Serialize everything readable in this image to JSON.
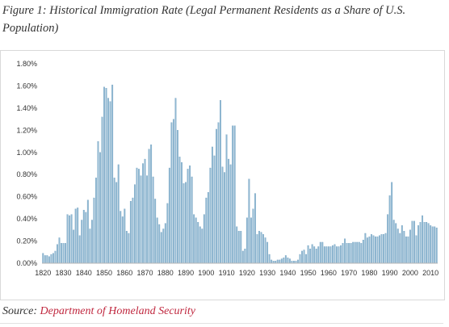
{
  "header": {
    "figure_title": "Figure 1: Historical Immigration Rate (Legal Permanent Residents as a Share of U.S. Population)"
  },
  "source": {
    "prefix": "Source:",
    "link_text": "Department of Homeland Security"
  },
  "colors": {
    "bar": "#8fb8d2",
    "bar_edge": "#6c9cbd",
    "link": "#c0283f"
  },
  "chart_data": {
    "type": "bar",
    "title": "",
    "xlabel": "",
    "ylabel": "",
    "ylim": [
      0,
      0.018
    ],
    "grid": false,
    "y_ticks": [
      "0.00%",
      "0.20%",
      "0.40%",
      "0.60%",
      "0.80%",
      "1.00%",
      "1.20%",
      "1.40%",
      "1.60%",
      "1.80%"
    ],
    "x_ticks": [
      "1820",
      "1830",
      "1840",
      "1850",
      "1860",
      "1870",
      "1880",
      "1890",
      "1900",
      "1910",
      "1920",
      "1930",
      "1940",
      "1950",
      "1960",
      "1970",
      "1980",
      "1990",
      "2000",
      "2010"
    ],
    "x_start": 1820,
    "x_end": 2013,
    "series": [
      {
        "values": [
          0.0009,
          0.0007,
          0.0007,
          0.0006,
          0.0008,
          0.0009,
          0.0011,
          0.0017,
          0.0023,
          0.0018,
          0.0018,
          0.0018,
          0.0044,
          0.0043,
          0.0044,
          0.003,
          0.0049,
          0.005,
          0.0025,
          0.0039,
          0.0048,
          0.0046,
          0.0057,
          0.0031,
          0.0039,
          0.0059,
          0.0077,
          0.011,
          0.01,
          0.0132,
          0.0159,
          0.0158,
          0.0149,
          0.0146,
          0.0161,
          0.0077,
          0.0073,
          0.0089,
          0.0047,
          0.0042,
          0.0049,
          0.0029,
          0.0027,
          0.0056,
          0.0059,
          0.0071,
          0.0086,
          0.0085,
          0.0079,
          0.009,
          0.0094,
          0.0079,
          0.0103,
          0.0107,
          0.0078,
          0.0058,
          0.0041,
          0.0035,
          0.0028,
          0.0031,
          0.0036,
          0.0054,
          0.0086,
          0.0127,
          0.013,
          0.0149,
          0.012,
          0.0096,
          0.0091,
          0.0072,
          0.0073,
          0.0085,
          0.0088,
          0.0078,
          0.0044,
          0.0041,
          0.0037,
          0.0033,
          0.0031,
          0.0044,
          0.0059,
          0.0064,
          0.0086,
          0.0105,
          0.0097,
          0.0121,
          0.0127,
          0.0147,
          0.0087,
          0.0082,
          0.0116,
          0.0094,
          0.0089,
          0.0124,
          0.0124,
          0.0033,
          0.0029,
          0.0029,
          0.0011,
          0.0013,
          0.0041,
          0.0076,
          0.0041,
          0.0049,
          0.0063,
          0.0026,
          0.0029,
          0.0028,
          0.0026,
          0.0023,
          0.0019,
          0.0008,
          0.0003,
          0.0002,
          0.0002,
          0.0003,
          0.0003,
          0.0004,
          0.0005,
          0.0007,
          0.0005,
          0.0004,
          0.0002,
          0.0002,
          0.0002,
          0.0003,
          0.0008,
          0.0011,
          0.0012,
          0.0008,
          0.0016,
          0.0013,
          0.0017,
          0.0015,
          0.0013,
          0.0015,
          0.0019,
          0.0019,
          0.0015,
          0.0015,
          0.0015,
          0.0015,
          0.0016,
          0.0017,
          0.0015,
          0.0015,
          0.0016,
          0.0018,
          0.0022,
          0.0018,
          0.0018,
          0.0018,
          0.0019,
          0.0019,
          0.0019,
          0.0019,
          0.0018,
          0.0021,
          0.0027,
          0.0023,
          0.0024,
          0.0026,
          0.0025,
          0.0024,
          0.0024,
          0.0025,
          0.0026,
          0.0026,
          0.0027,
          0.0044,
          0.0061,
          0.0073,
          0.0039,
          0.0036,
          0.0031,
          0.0027,
          0.0034,
          0.0029,
          0.0024,
          0.0024,
          0.003,
          0.0038,
          0.0038,
          0.0025,
          0.0034,
          0.0037,
          0.0043,
          0.0037,
          0.0037,
          0.0036,
          0.0034,
          0.0033,
          0.0033,
          0.0032
        ]
      }
    ]
  }
}
